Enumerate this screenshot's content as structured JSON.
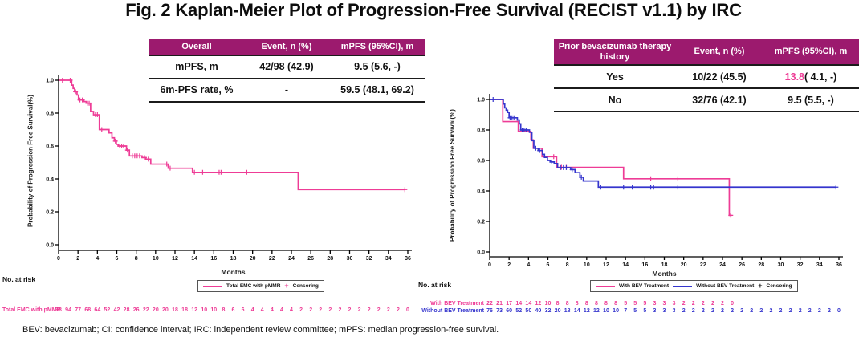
{
  "title": "Fig. 2 Kaplan-Meier Plot of Progression-Free Survival (RECIST v1.1) by IRC",
  "footnote": "BEV: bevacizumab; CI: confidence interval; IRC: independent review committee; mPFS: median progression-free survival.",
  "colors": {
    "table_header_bg": "#9C1A6E",
    "pink": "#EE3C96",
    "blue": "#3535CD",
    "axis": "#000000"
  },
  "tables": {
    "overall": {
      "headers": [
        "Overall",
        "Event, n (%)",
        "mPFS (95%CI), m"
      ],
      "rows": [
        [
          "mPFS, m",
          "42/98 (42.9)",
          "9.5 (5.6, -)"
        ],
        [
          "6m-PFS rate, %",
          "-",
          "59.5 (48.1, 69.2)"
        ]
      ]
    },
    "prior_bev": {
      "headers": [
        "Prior bevacizumab therapy history",
        "Event, n (%)",
        "mPFS (95%CI), m"
      ],
      "rows": [
        [
          "Yes",
          "10/22 (45.5)",
          {
            "parts": [
              {
                "text": "13.8",
                "color": "#EE3C96"
              },
              {
                "text": " ( 4.1, -)"
              }
            ]
          }
        ],
        [
          "No",
          "32/76 (42.1)",
          "9.5 (5.5, -)"
        ]
      ]
    }
  },
  "chart_data": [
    {
      "type": "line",
      "xlabel": "Months",
      "ylabel": "Probability of Progression Free Survival(%)",
      "xlim": [
        0,
        36
      ],
      "ylim": [
        0,
        1.0
      ],
      "xticks": [
        0,
        2,
        4,
        6,
        8,
        10,
        12,
        14,
        16,
        18,
        20,
        22,
        24,
        26,
        28,
        30,
        32,
        34,
        36
      ],
      "yticks": [
        0.0,
        0.2,
        0.4,
        0.6,
        0.8,
        1.0
      ],
      "grid": false,
      "legend_position": "bottom",
      "censor_label": "Censoring",
      "series": [
        {
          "name": "Total EMC with pMMR",
          "color": "#EE3C96",
          "steps": [
            [
              0,
              1
            ],
            [
              1.35,
              0.97
            ],
            [
              1.5,
              0.95
            ],
            [
              1.65,
              0.93
            ],
            [
              1.9,
              0.91
            ],
            [
              2.05,
              0.88
            ],
            [
              2.6,
              0.87
            ],
            [
              2.85,
              0.86
            ],
            [
              3.3,
              0.81
            ],
            [
              3.6,
              0.79
            ],
            [
              4.2,
              0.7
            ],
            [
              5.2,
              0.68
            ],
            [
              5.5,
              0.65
            ],
            [
              5.75,
              0.63
            ],
            [
              5.95,
              0.61
            ],
            [
              6.15,
              0.6
            ],
            [
              7.0,
              0.575
            ],
            [
              7.3,
              0.54
            ],
            [
              8.6,
              0.53
            ],
            [
              9.0,
              0.52
            ],
            [
              9.5,
              0.49
            ],
            [
              11.3,
              0.465
            ],
            [
              13.8,
              0.44
            ],
            [
              24.7,
              0.335
            ],
            [
              35.7,
              0.335
            ]
          ],
          "censors": [
            [
              0.4,
              1
            ],
            [
              1.2,
              1
            ],
            [
              1.75,
              0.93
            ],
            [
              2.2,
              0.88
            ],
            [
              2.45,
              0.88
            ],
            [
              3.0,
              0.86
            ],
            [
              3.15,
              0.86
            ],
            [
              3.8,
              0.79
            ],
            [
              4.0,
              0.79
            ],
            [
              4.45,
              0.7
            ],
            [
              5.85,
              0.63
            ],
            [
              6.3,
              0.6
            ],
            [
              6.5,
              0.6
            ],
            [
              6.7,
              0.6
            ],
            [
              7.1,
              0.575
            ],
            [
              7.6,
              0.54
            ],
            [
              7.85,
              0.54
            ],
            [
              8.1,
              0.54
            ],
            [
              8.35,
              0.54
            ],
            [
              8.85,
              0.53
            ],
            [
              9.25,
              0.52
            ],
            [
              11.15,
              0.49
            ],
            [
              11.5,
              0.465
            ],
            [
              14.0,
              0.44
            ],
            [
              14.85,
              0.44
            ],
            [
              16.55,
              0.44
            ],
            [
              16.75,
              0.44
            ],
            [
              19.4,
              0.44
            ],
            [
              35.7,
              0.335
            ]
          ]
        }
      ],
      "no_at_risk": {
        "title": "No. at risk",
        "rows": [
          {
            "label": "Total EMC with pMMR",
            "color": "#EE3C96",
            "values": [
              98,
              94,
              77,
              68,
              64,
              52,
              42,
              28,
              26,
              22,
              20,
              20,
              18,
              18,
              12,
              10,
              10,
              8,
              6,
              6,
              4,
              4,
              4,
              4,
              4,
              2,
              2,
              2,
              2,
              2,
              2,
              2,
              2,
              2,
              2,
              2,
              0
            ]
          }
        ]
      }
    },
    {
      "type": "line",
      "xlabel": "Months",
      "ylabel": "Probability of Progression Free Survival(%)",
      "xlim": [
        0,
        36
      ],
      "ylim": [
        0,
        1.0
      ],
      "xticks": [
        0,
        2,
        4,
        6,
        8,
        10,
        12,
        14,
        16,
        18,
        20,
        22,
        24,
        26,
        28,
        30,
        32,
        34,
        36
      ],
      "yticks": [
        0.0,
        0.2,
        0.4,
        0.6,
        0.8,
        1.0
      ],
      "grid": false,
      "legend_position": "bottom",
      "censor_label": "Censoring",
      "series": [
        {
          "name": "With BEV Treatment",
          "color": "#EE3C96",
          "steps": [
            [
              0,
              1
            ],
            [
              1.35,
              0.855
            ],
            [
              2.95,
              0.79
            ],
            [
              4.25,
              0.735
            ],
            [
              4.5,
              0.68
            ],
            [
              5.4,
              0.625
            ],
            [
              6.9,
              0.555
            ],
            [
              13.8,
              0.48
            ],
            [
              24.7,
              0.24
            ],
            [
              24.95,
              0.24
            ]
          ],
          "censors": [
            [
              6.6,
              0.625
            ],
            [
              7.4,
              0.555
            ],
            [
              7.9,
              0.555
            ],
            [
              16.6,
              0.48
            ],
            [
              19.4,
              0.48
            ],
            [
              24.85,
              0.24
            ]
          ]
        },
        {
          "name": "Without BEV Treatment",
          "color": "#3535CD",
          "steps": [
            [
              0,
              1
            ],
            [
              1.4,
              0.97
            ],
            [
              1.55,
              0.945
            ],
            [
              1.7,
              0.93
            ],
            [
              1.85,
              0.915
            ],
            [
              2.0,
              0.88
            ],
            [
              2.85,
              0.865
            ],
            [
              3.05,
              0.84
            ],
            [
              3.2,
              0.8
            ],
            [
              4.1,
              0.785
            ],
            [
              4.35,
              0.73
            ],
            [
              4.55,
              0.68
            ],
            [
              5.0,
              0.665
            ],
            [
              5.45,
              0.64
            ],
            [
              5.65,
              0.62
            ],
            [
              5.95,
              0.6
            ],
            [
              6.25,
              0.59
            ],
            [
              6.65,
              0.58
            ],
            [
              7.0,
              0.553
            ],
            [
              8.35,
              0.54
            ],
            [
              8.8,
              0.52
            ],
            [
              9.3,
              0.49
            ],
            [
              9.65,
              0.465
            ],
            [
              11.2,
              0.425
            ],
            [
              35.7,
              0.425
            ]
          ],
          "censors": [
            [
              0.35,
              1
            ],
            [
              2.1,
              0.88
            ],
            [
              2.3,
              0.88
            ],
            [
              2.5,
              0.88
            ],
            [
              3.35,
              0.8
            ],
            [
              3.55,
              0.8
            ],
            [
              3.75,
              0.8
            ],
            [
              4.75,
              0.68
            ],
            [
              5.15,
              0.665
            ],
            [
              6.4,
              0.59
            ],
            [
              7.3,
              0.553
            ],
            [
              7.6,
              0.553
            ],
            [
              7.9,
              0.553
            ],
            [
              8.5,
              0.54
            ],
            [
              9.45,
              0.49
            ],
            [
              11.45,
              0.425
            ],
            [
              13.8,
              0.425
            ],
            [
              14.7,
              0.425
            ],
            [
              16.6,
              0.425
            ],
            [
              16.9,
              0.425
            ],
            [
              19.4,
              0.425
            ],
            [
              35.7,
              0.425
            ]
          ]
        }
      ],
      "no_at_risk": {
        "title": "No. at risk",
        "rows": [
          {
            "label": "With BEV Treatment",
            "color": "#EE3C96",
            "values": [
              22,
              21,
              17,
              14,
              14,
              12,
              10,
              8,
              8,
              8,
              8,
              8,
              8,
              8,
              5,
              5,
              5,
              3,
              3,
              3,
              2,
              2,
              2,
              2,
              2,
              0
            ]
          },
          {
            "label": "Without BEV Treatment",
            "color": "#3535CD",
            "values": [
              76,
              73,
              60,
              52,
              50,
              40,
              32,
              20,
              18,
              14,
              12,
              12,
              10,
              10,
              7,
              5,
              5,
              3,
              3,
              3,
              2,
              2,
              2,
              2,
              2,
              2,
              2,
              2,
              2,
              2,
              2,
              2,
              2,
              2,
              2,
              2,
              0
            ]
          }
        ]
      }
    }
  ]
}
